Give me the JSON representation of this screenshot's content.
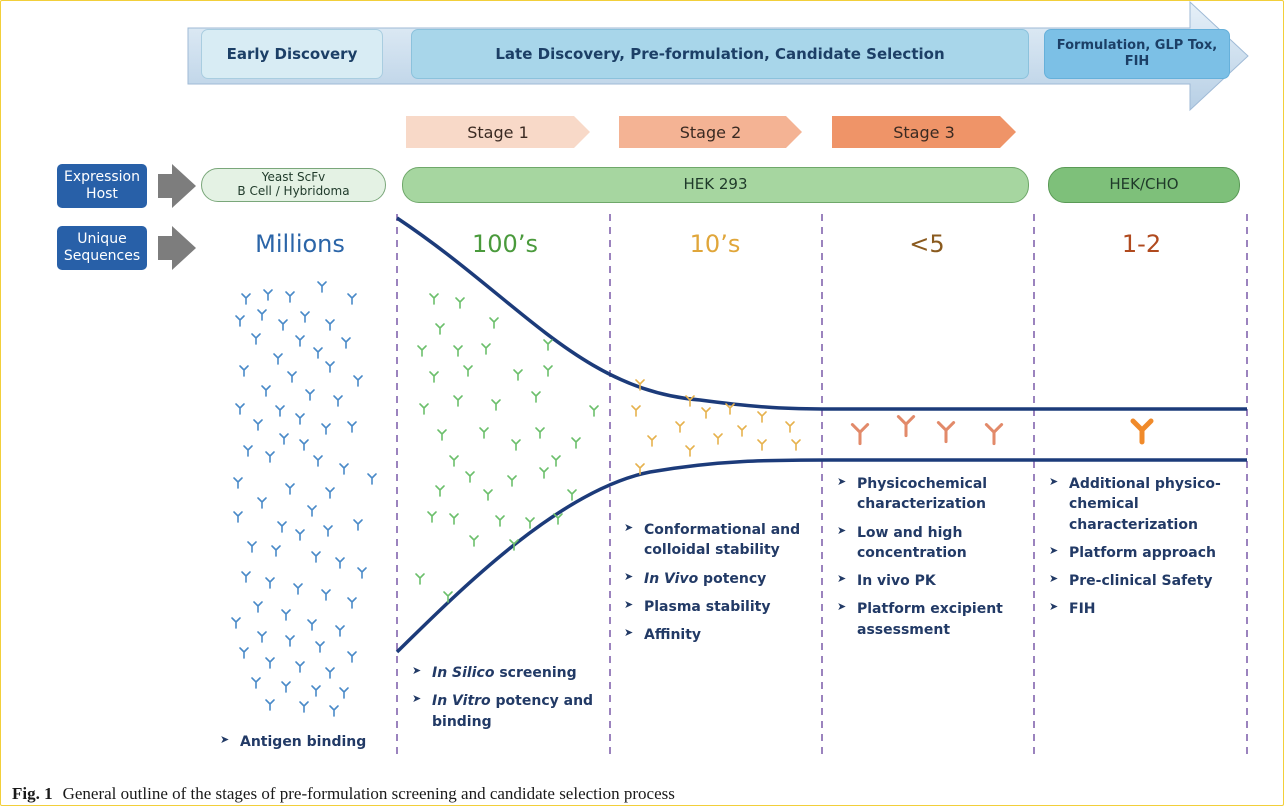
{
  "phases": [
    {
      "label": "Early Discovery"
    },
    {
      "label": "Late Discovery, Pre-formulation, Candidate Selection"
    },
    {
      "label": "Formulation, GLP Tox, FIH"
    }
  ],
  "stages": [
    "Stage 1",
    "Stage 2",
    "Stage 3"
  ],
  "row_labels": {
    "expression_host": "Expression Host",
    "unique_sequences": "Unique Sequences"
  },
  "hosts": {
    "early_line1": "Yeast ScFv",
    "early_line2": "B Cell / Hybridoma",
    "middle": "HEK 293",
    "late": "HEK/CHO"
  },
  "counts": [
    "Millions",
    "100’s",
    "10’s",
    "<5",
    "1-2"
  ],
  "columns": [
    {
      "items": [
        "Antigen binding"
      ]
    },
    {
      "items": [
        "In Silico screening",
        "In Vitro potency and binding"
      ]
    },
    {
      "items": [
        "Conformational and colloidal stability",
        "In Vivo potency",
        "Plasma stability",
        "Affinity"
      ]
    },
    {
      "items": [
        "Physicochemical characterization",
        "Low and high concentration",
        "In vivo PK",
        "Platform excipient assessment"
      ]
    },
    {
      "items": [
        "Additional physico-chemical characterization",
        "Platform approach",
        "Pre-clinical Safety",
        "FIH"
      ]
    }
  ],
  "caption": {
    "label": "Fig. 1",
    "text": "General outline of the stages of pre-formulation screening and candidate selection process"
  },
  "colors": {
    "arrow": "#c9dcee",
    "phase_box": "#b8dbe9",
    "millions": "#2b65a8",
    "hundreds": "#4a9a3c",
    "tens": "#e0a63a",
    "under5": "#8a5a1e",
    "one_two": "#b04a1e",
    "funnel": "#1c3b7a"
  }
}
